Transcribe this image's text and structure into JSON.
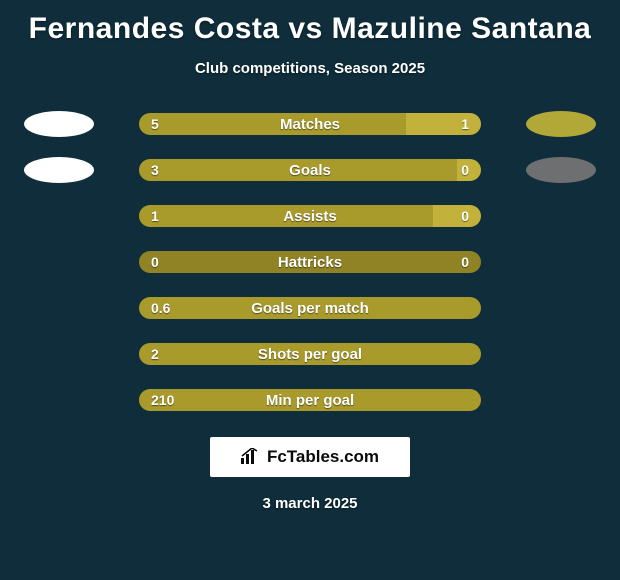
{
  "colors": {
    "background": "#0f2d3a",
    "left_seg": "#a99a2c",
    "right_seg": "#c2b23b",
    "mid_seg": "#8f8326",
    "left_badge_1": "#ffffff",
    "right_badge_1": "#b2a838",
    "left_badge_2": "#ffffff",
    "right_badge_2": "#6d6f70",
    "brand_bg": "#ffffff",
    "brand_fg": "#0a0a0a"
  },
  "title": "Fernandes Costa vs Mazuline Santana",
  "subtitle": "Club competitions, Season 2025",
  "rows": [
    {
      "label": "Matches",
      "left_value": "5",
      "right_value": "1",
      "has_badges": true,
      "left_badge_color_key": "left_badge_1",
      "right_badge_color_key": "right_badge_1",
      "left_pct": 78,
      "right_pct": 22,
      "left_color_key": "left_seg",
      "right_color_key": "right_seg"
    },
    {
      "label": "Goals",
      "left_value": "3",
      "right_value": "0",
      "has_badges": true,
      "left_badge_color_key": "left_badge_2",
      "right_badge_color_key": "right_badge_2",
      "left_pct": 93,
      "right_pct": 7,
      "left_color_key": "left_seg",
      "right_color_key": "right_seg"
    },
    {
      "label": "Assists",
      "left_value": "1",
      "right_value": "0",
      "has_badges": false,
      "left_pct": 86,
      "right_pct": 14,
      "left_color_key": "left_seg",
      "right_color_key": "right_seg"
    },
    {
      "label": "Hattricks",
      "left_value": "0",
      "right_value": "0",
      "has_badges": false,
      "left_pct": 50,
      "right_pct": 50,
      "left_color_key": "mid_seg",
      "right_color_key": "mid_seg"
    },
    {
      "label": "Goals per match",
      "left_value": "0.6",
      "right_value": "",
      "has_badges": false,
      "left_pct": 100,
      "right_pct": 0,
      "left_color_key": "left_seg",
      "right_color_key": "right_seg"
    },
    {
      "label": "Shots per goal",
      "left_value": "2",
      "right_value": "",
      "has_badges": false,
      "left_pct": 100,
      "right_pct": 0,
      "left_color_key": "left_seg",
      "right_color_key": "right_seg"
    },
    {
      "label": "Min per goal",
      "left_value": "210",
      "right_value": "",
      "has_badges": false,
      "left_pct": 100,
      "right_pct": 0,
      "left_color_key": "left_seg",
      "right_color_key": "right_seg"
    }
  ],
  "brand": {
    "text": "FcTables.com"
  },
  "date": "3 march 2025"
}
